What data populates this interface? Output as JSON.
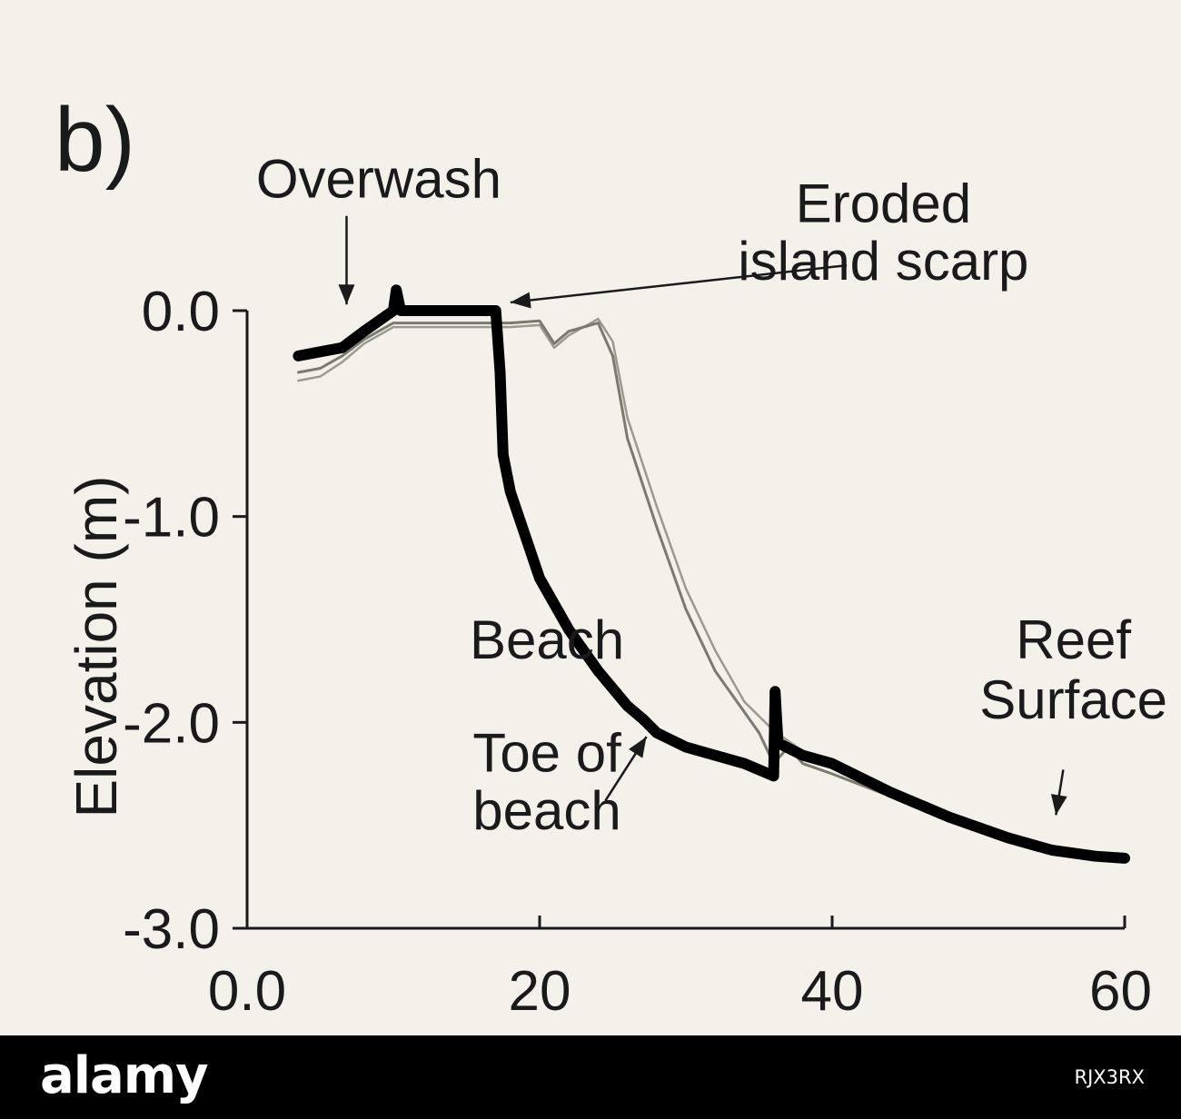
{
  "chart_data": {
    "type": "line",
    "panel_label": "b)",
    "ylabel": "Elevation (m)",
    "xlabel": "",
    "xlim": [
      0,
      60
    ],
    "ylim": [
      -3.0,
      0.0
    ],
    "xticks": [
      0,
      20,
      40,
      60
    ],
    "xtick_labels": [
      "0.0",
      "20",
      "40",
      "60"
    ],
    "yticks": [
      0.0,
      -1.0,
      -2.0,
      -3.0
    ],
    "ytick_labels": [
      "0.0",
      "-1.0",
      "-2.0",
      "-3.0"
    ],
    "grid": false,
    "series": [
      {
        "color": "#000000",
        "x": [
          3.5,
          5,
          6.5,
          8,
          10,
          10.2,
          10.5,
          12,
          14,
          16,
          17,
          17.3,
          17.5,
          18,
          20,
          22,
          24,
          26,
          27,
          27.3,
          28,
          30,
          32,
          34,
          36,
          36.1,
          36.3,
          38,
          40,
          44,
          48,
          52,
          55,
          58,
          60
        ],
        "y": [
          -0.22,
          -0.2,
          -0.18,
          -0.1,
          0.0,
          0.1,
          0.0,
          0.0,
          0.0,
          0.0,
          0.0,
          -0.3,
          -0.7,
          -0.88,
          -1.3,
          -1.55,
          -1.75,
          -1.92,
          -1.98,
          -2.0,
          -2.05,
          -2.12,
          -2.16,
          -2.2,
          -2.26,
          -1.85,
          -2.1,
          -2.16,
          -2.2,
          -2.34,
          -2.46,
          -2.56,
          -2.62,
          -2.65,
          -2.66
        ]
      },
      {
        "color": "#7a7a6e",
        "x": [
          3.5,
          5,
          6.5,
          8,
          10,
          12,
          14,
          16,
          18,
          20,
          21,
          22,
          24,
          25,
          26,
          28,
          30,
          32,
          34,
          35,
          36,
          37,
          38,
          40,
          44,
          48,
          52,
          55,
          58,
          60
        ],
        "y": [
          -0.3,
          -0.28,
          -0.22,
          -0.14,
          -0.06,
          -0.06,
          -0.06,
          -0.06,
          -0.06,
          -0.05,
          -0.16,
          -0.1,
          -0.06,
          -0.22,
          -0.62,
          -1.05,
          -1.45,
          -1.75,
          -1.95,
          -2.05,
          -2.2,
          -2.12,
          -2.2,
          -2.25,
          -2.36,
          -2.46,
          -2.55,
          -2.62,
          -2.65,
          -2.66
        ]
      },
      {
        "color": "#9a9a90",
        "x": [
          3.5,
          5,
          6.5,
          8,
          10,
          12,
          14,
          16,
          18,
          20,
          21,
          22,
          24,
          25,
          26,
          28,
          30,
          32,
          34,
          36,
          38,
          40,
          44,
          48,
          52,
          55,
          58,
          60
        ],
        "y": [
          -0.34,
          -0.32,
          -0.25,
          -0.16,
          -0.08,
          -0.08,
          -0.08,
          -0.08,
          -0.08,
          -0.07,
          -0.18,
          -0.12,
          -0.04,
          -0.15,
          -0.52,
          -0.95,
          -1.35,
          -1.65,
          -1.9,
          -2.04,
          -2.14,
          -2.22,
          -2.34,
          -2.45,
          -2.54,
          -2.61,
          -2.65,
          -2.66
        ]
      }
    ],
    "annotations": [
      {
        "text": "Overwash",
        "x": 9.0,
        "y": 0.55
      },
      {
        "text": "Eroded",
        "x": 43.5,
        "y": 0.43
      },
      {
        "text": "island scarp",
        "x": 43.5,
        "y": 0.15
      },
      {
        "text": "Beach",
        "x": 20.5,
        "y": -1.69
      },
      {
        "text": "Toe of",
        "x": 20.5,
        "y": -2.24
      },
      {
        "text": "beach",
        "x": 20.5,
        "y": -2.52
      },
      {
        "text": "Reef",
        "x": 56.5,
        "y": -1.69
      },
      {
        "text": "Surface",
        "x": 56.5,
        "y": -1.98
      }
    ],
    "arrows": [
      {
        "from": [
          6.8,
          0.46
        ],
        "to": [
          6.8,
          0.03
        ]
      },
      {
        "from": [
          41.0,
          0.22
        ],
        "to": [
          18.0,
          0.04
        ]
      },
      {
        "from": [
          24.5,
          -2.38
        ],
        "to": [
          27.3,
          -2.07
        ]
      },
      {
        "from": [
          55.8,
          -2.23
        ],
        "to": [
          55.3,
          -2.45
        ]
      }
    ]
  },
  "footer": {
    "logo": "alamy",
    "image_id": "RJX3RX"
  }
}
